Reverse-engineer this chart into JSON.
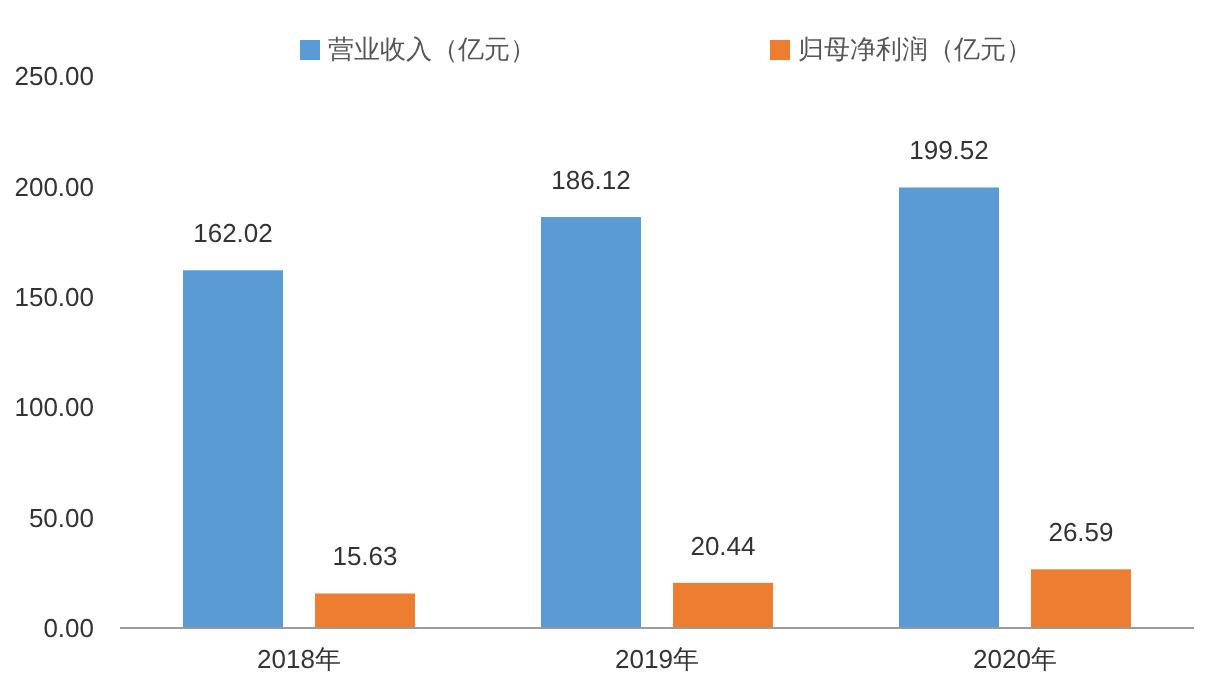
{
  "chart_data": {
    "type": "bar",
    "categories": [
      "2018年",
      "2019年",
      "2020年"
    ],
    "series": [
      {
        "name": "营业收入（亿元）",
        "color": "#5b9bd5",
        "values": [
          162.02,
          186.12,
          199.52
        ]
      },
      {
        "name": "归母净利润（亿元）",
        "color": "#ed7d31",
        "values": [
          15.63,
          20.44,
          26.59
        ]
      }
    ],
    "ylim": [
      0,
      250
    ],
    "yticks": [
      {
        "value": 0,
        "label": "0.00"
      },
      {
        "value": 50,
        "label": "50.00"
      },
      {
        "value": 100,
        "label": "100.00"
      },
      {
        "value": 150,
        "label": "150.00"
      },
      {
        "value": 200,
        "label": "200.00"
      },
      {
        "value": 250,
        "label": "250.00"
      }
    ],
    "data_labels": true,
    "legend": "top",
    "grid": false
  }
}
